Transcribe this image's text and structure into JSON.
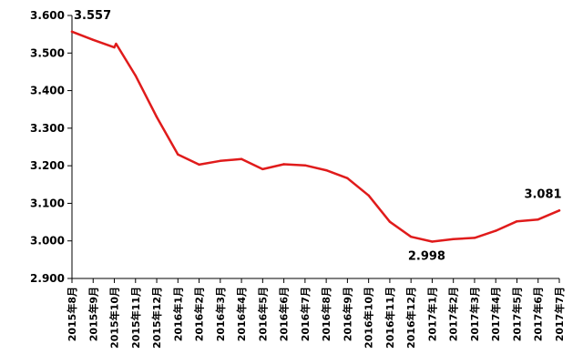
{
  "chart_data": {
    "type": "line",
    "title": "",
    "xlabel": "",
    "ylabel": "",
    "categories": [
      "2015年8月",
      "2015年9月",
      "2015年10月",
      "2015年11月",
      "2015年12月",
      "2016年1月",
      "2016年2月",
      "2016年3月",
      "2016年4月",
      "2016年5月",
      "2016年6月",
      "2016年7月",
      "2016年8月",
      "2016年9月",
      "2016年10月",
      "2016年11月",
      "2016年12月",
      "2017年1月",
      "2017年2月",
      "2017年3月",
      "2017年4月",
      "2017年5月",
      "2017年6月",
      "2017年7月"
    ],
    "series": [
      {
        "color": "#e01b1b",
        "values": [
          3.557,
          3.535,
          3.515,
          3.44,
          3.33,
          3.23,
          3.203,
          3.213,
          3.218,
          3.191,
          3.204,
          3.201,
          3.188,
          3.167,
          3.121,
          3.051,
          3.011,
          2.998,
          3.005,
          3.008,
          3.027,
          3.052,
          3.057,
          3.081
        ]
      }
    ],
    "kink": {
      "after_index": 2,
      "value": 3.525
    },
    "ylim": [
      2.9,
      3.6
    ],
    "yticks": [
      "2.900",
      "3.000",
      "3.100",
      "3.200",
      "3.300",
      "3.400",
      "3.500",
      "3.600"
    ],
    "grid": false,
    "legend": "none",
    "data_labels": [
      {
        "index": 0,
        "text": "3.557"
      },
      {
        "index": 17,
        "text": "2.998"
      },
      {
        "index": 23,
        "text": "3.081"
      }
    ]
  }
}
